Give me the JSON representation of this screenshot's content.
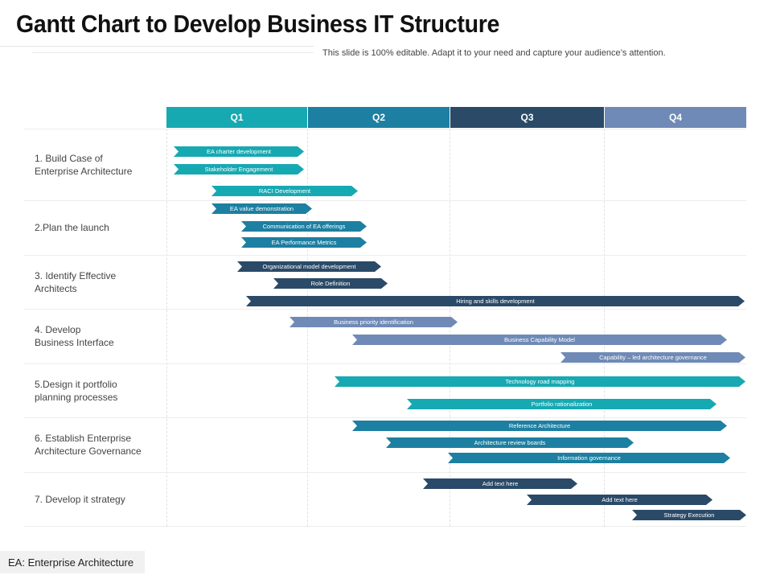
{
  "title": "Gantt Chart to Develop Business IT Structure",
  "subtitle": "This slide is 100% editable. Adapt it to your need and capture your audience’s attention.",
  "quarters": [
    {
      "label": "Q1",
      "color": "#17a9b2"
    },
    {
      "label": "Q2",
      "color": "#1d7fa1"
    },
    {
      "label": "Q3",
      "color": "#2a4a68"
    },
    {
      "label": "Q4",
      "color": "#6f8ab6"
    }
  ],
  "rows": [
    {
      "line1": "1. Build Case of",
      "line2": "Enterprise Architecture"
    },
    {
      "line1": "2.Plan the launch",
      "line2": ""
    },
    {
      "line1": "3. Identify Effective",
      "line2": "Architects"
    },
    {
      "line1": "4. Develop",
      "line2": "Business Interface"
    },
    {
      "line1": "5.Design it portfolio",
      "line2": "planning processes"
    },
    {
      "line1": "6. Establish Enterprise",
      "line2": "Architecture Governance"
    },
    {
      "line1": "7. Develop it strategy",
      "line2": ""
    }
  ],
  "tasks": [
    {
      "label": "EA charter development",
      "color": "#17a9b2"
    },
    {
      "label": "Stakeholder Engagement",
      "color": "#17a9b2"
    },
    {
      "label": "RACI Development",
      "color": "#17a9b2"
    },
    {
      "label": "EA value demonstration",
      "color": "#1d7fa1"
    },
    {
      "label": "Communication of EA offerings",
      "color": "#1d7fa1"
    },
    {
      "label": "EA Performance Metrics",
      "color": "#1d7fa1"
    },
    {
      "label": "Organizational  model development",
      "color": "#2a4a68"
    },
    {
      "label": "Role Definition",
      "color": "#2a4a68"
    },
    {
      "label": "Hiring and skills development",
      "color": "#2a4a68"
    },
    {
      "label": "Business priority identification",
      "color": "#6f8ab6"
    },
    {
      "label": "Business Capability Model",
      "color": "#6f8ab6"
    },
    {
      "label": "Capability – led architecture governance",
      "color": "#6f8ab6"
    },
    {
      "label": "Technology road mapping",
      "color": "#17a9b2"
    },
    {
      "label": "Portfolio rationalization",
      "color": "#17a9b2"
    },
    {
      "label": "Reference  Architecture",
      "color": "#1d7fa1"
    },
    {
      "label": "Architecture  review  boards",
      "color": "#1d7fa1"
    },
    {
      "label": "Information governance",
      "color": "#1d7fa1"
    },
    {
      "label": "Add text  here",
      "color": "#2a4a68"
    },
    {
      "label": "Add text  here",
      "color": "#2a4a68"
    },
    {
      "label": "Strategy  Execution",
      "color": "#2a4a68"
    }
  ],
  "legend": "EA: Enterprise Architecture"
}
